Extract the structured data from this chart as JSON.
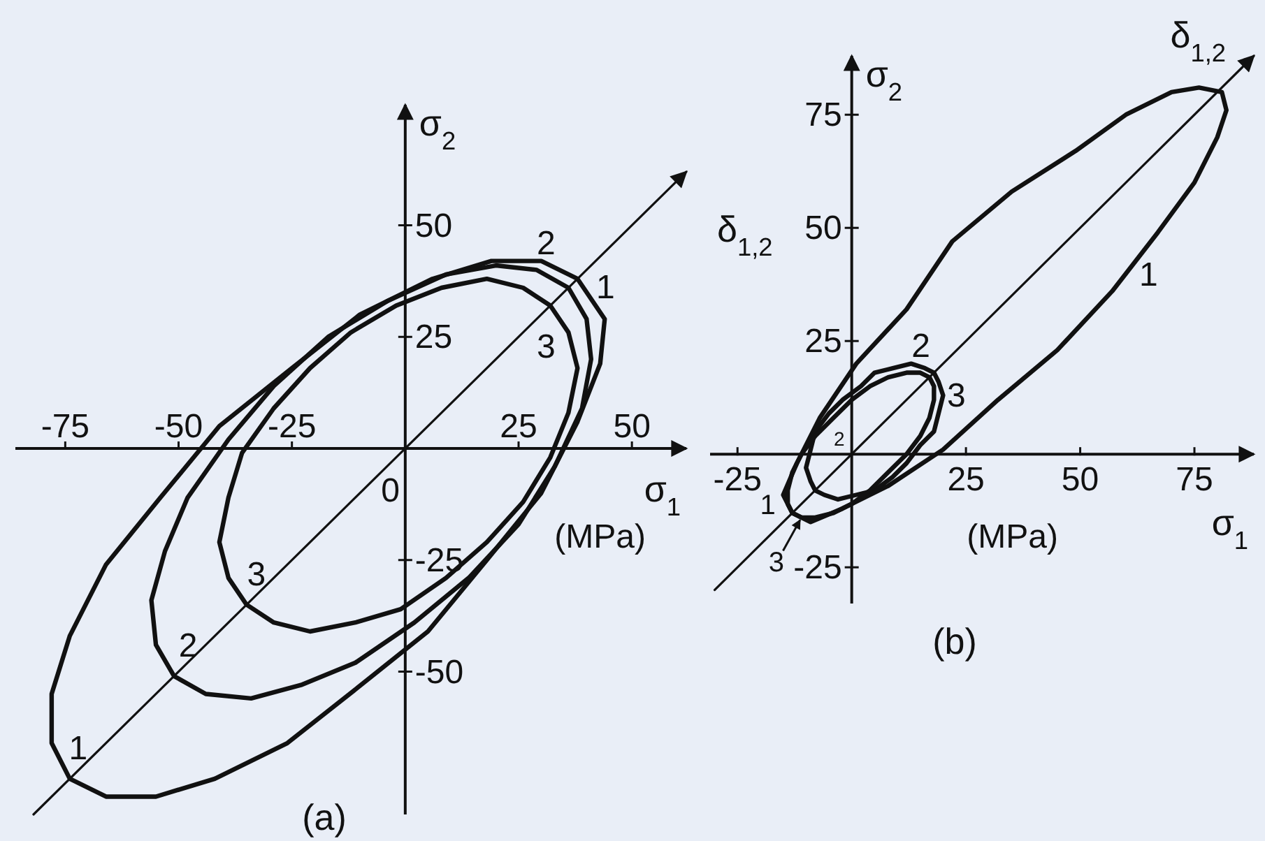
{
  "chart_data": [
    {
      "type": "line",
      "title": "(a)",
      "xlabel": "σ$_{1}$",
      "ylabel": "σ$_{2}$",
      "xlim": [
        -86,
        62
      ],
      "ylim": [
        -82,
        77
      ],
      "xticks": [
        -75,
        -50,
        -25,
        25,
        50
      ],
      "yticks": [
        -50,
        -25,
        25,
        50
      ],
      "series": [
        {
          "name": "δ$_{1,2}$",
          "color": "#111111",
          "x": [
            -82,
            62
          ],
          "values": [
            -82,
            62
          ]
        },
        {
          "name": "1",
          "color": "#111111",
          "x": [
            -41,
            -54,
            -66,
            -74,
            -78,
            -78,
            -74,
            -66,
            -55,
            -42,
            -26,
            -11,
            5,
            18,
            30,
            38,
            43,
            44,
            38,
            30,
            19,
            6,
            -10,
            -25,
            -41,
            -54
          ],
          "values": [
            5,
            -11,
            -26,
            -42,
            -55,
            -66,
            -74,
            -78,
            -78,
            -74,
            -66,
            -54,
            -41,
            -25,
            -10,
            6,
            19,
            29,
            38,
            42,
            42,
            38,
            30,
            18,
            5,
            -11
          ]
        },
        {
          "name": "2",
          "color": "#111111",
          "x": [
            -29,
            -39,
            -48,
            -53,
            -56,
            -55,
            -51,
            -44,
            -34,
            -23,
            -11,
            2,
            14,
            25,
            33,
            39,
            41,
            40,
            36,
            29,
            20,
            9,
            -4,
            -17,
            -29,
            -39
          ],
          "values": [
            14,
            2,
            -11,
            -23,
            -34,
            -44,
            -51,
            -55,
            -56,
            -53,
            -48,
            -39,
            -29,
            -17,
            -4,
            9,
            20,
            29,
            36,
            40,
            41,
            39,
            33,
            25,
            14,
            2
          ]
        },
        {
          "name": "3",
          "color": "#111111",
          "x": [
            -21,
            -29,
            -36,
            -39,
            -41,
            -39,
            -35,
            -29,
            -21,
            -11,
            -1,
            9,
            18,
            26,
            32,
            36,
            38,
            36,
            32,
            26,
            18,
            8,
            -2,
            -12,
            -21,
            -29
          ],
          "values": [
            18,
            9,
            -1,
            -11,
            -21,
            -29,
            -35,
            -39,
            -41,
            -39,
            -36,
            -29,
            -21,
            -12,
            -2,
            8,
            18,
            26,
            32,
            36,
            38,
            36,
            32,
            26,
            18,
            9
          ]
        }
      ],
      "annotations": [
        "(MPa)",
        "0"
      ]
    },
    {
      "type": "line",
      "title": "(b)",
      "xlabel": "σ$_{1}$",
      "ylabel": "σ$_{2}$",
      "xlim": [
        -31,
        88
      ],
      "ylim": [
        -33,
        88
      ],
      "xticks": [
        -25,
        25,
        50,
        75
      ],
      "yticks": [
        -25,
        25,
        50,
        75
      ],
      "series": [
        {
          "name": "δ$_{1,2}$",
          "color": "#111111",
          "x": [
            -30,
            88
          ],
          "values": [
            -30,
            88
          ]
        },
        {
          "name": "1",
          "color": "#111111",
          "x": [
            22,
            12,
            1,
            -7,
            -12,
            -15,
            -13,
            -9,
            -2,
            8,
            20,
            32,
            45,
            57,
            67,
            75,
            80,
            82,
            81,
            76,
            70,
            60,
            49,
            35,
            22,
            12
          ],
          "values": [
            47,
            32,
            20,
            8,
            -2,
            -9,
            -13,
            -15,
            -12,
            -7,
            1,
            12,
            23,
            36,
            49,
            60,
            70,
            76,
            80,
            81,
            80,
            75,
            67,
            58,
            47,
            32
          ]
        },
        {
          "name": "2",
          "color": "#111111",
          "x": [
            -2,
            -5,
            -8,
            -9,
            -10,
            -9,
            -8,
            -6,
            -3,
            1,
            5,
            9,
            12,
            15,
            18,
            19,
            20,
            19,
            18,
            16,
            13,
            9,
            5,
            2,
            -2,
            -5
          ],
          "values": [
            12,
            9,
            5,
            1,
            -3,
            -6,
            -8,
            -9,
            -10,
            -9,
            -8,
            -5,
            -2,
            2,
            5,
            9,
            13,
            16,
            18,
            19,
            20,
            19,
            18,
            15,
            12,
            9
          ]
        },
        {
          "name": "3",
          "color": "#111111",
          "x": [
            -4,
            -8,
            -11,
            -13,
            -14,
            -14,
            -13,
            -11,
            -8,
            -4,
            0,
            4,
            8,
            12,
            15,
            17,
            18,
            18,
            17,
            15,
            12,
            8,
            4,
            0,
            -4,
            -8
          ],
          "values": [
            8,
            4,
            0,
            -4,
            -8,
            -11,
            -13,
            -14,
            -14,
            -13,
            -11,
            -8,
            -4,
            0,
            4,
            8,
            12,
            15,
            17,
            18,
            18,
            17,
            15,
            12,
            8,
            4
          ]
        }
      ],
      "annotations": [
        "(MPa)"
      ]
    }
  ]
}
